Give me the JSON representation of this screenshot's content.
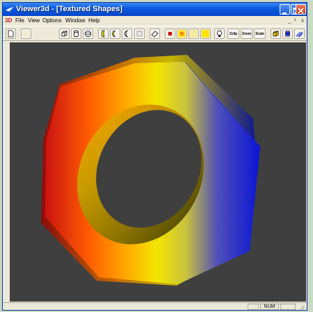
{
  "window": {
    "title": "Viewer3d - [Textured Shapes]",
    "icons": {
      "app": "bird-app-icon",
      "minimize": "minimize-icon",
      "maximize": "maximize-icon",
      "close": "close-icon"
    }
  },
  "menubar": {
    "logo": "3D",
    "items": [
      "File",
      "View",
      "Options",
      "Window",
      "Help"
    ],
    "mdi": {
      "minimize": "_",
      "restore": "²",
      "close": "x"
    }
  },
  "toolbar": {
    "zclip_label": "Zclip",
    "zoom_label": "Zoom",
    "scale_label": "Scale",
    "icons": [
      "new-document-icon",
      "blank-tool-icon",
      "cube-icon",
      "cylinder-icon",
      "sphere-icon",
      "cone-icon",
      "half-moon-icon",
      "crescent-icon",
      "blank-square-icon",
      "eraser-icon",
      "color-red-icon",
      "color-yellow-icon",
      "color-light-icon",
      "color-yellow-square-icon",
      "lightbulb-icon",
      "zclip-icon",
      "zoom-icon",
      "scale-icon",
      "cube-view-icon",
      "cylinder-blue-icon",
      "lines-icon"
    ]
  },
  "viewport": {
    "object": "textured-hex-nut",
    "background_color": "#3f3f3f",
    "gradient_colors": [
      "#c81212",
      "#ff7a00",
      "#f2e600",
      "#0a14d6"
    ]
  },
  "statusbar": {
    "num_indicator": "NUM"
  }
}
